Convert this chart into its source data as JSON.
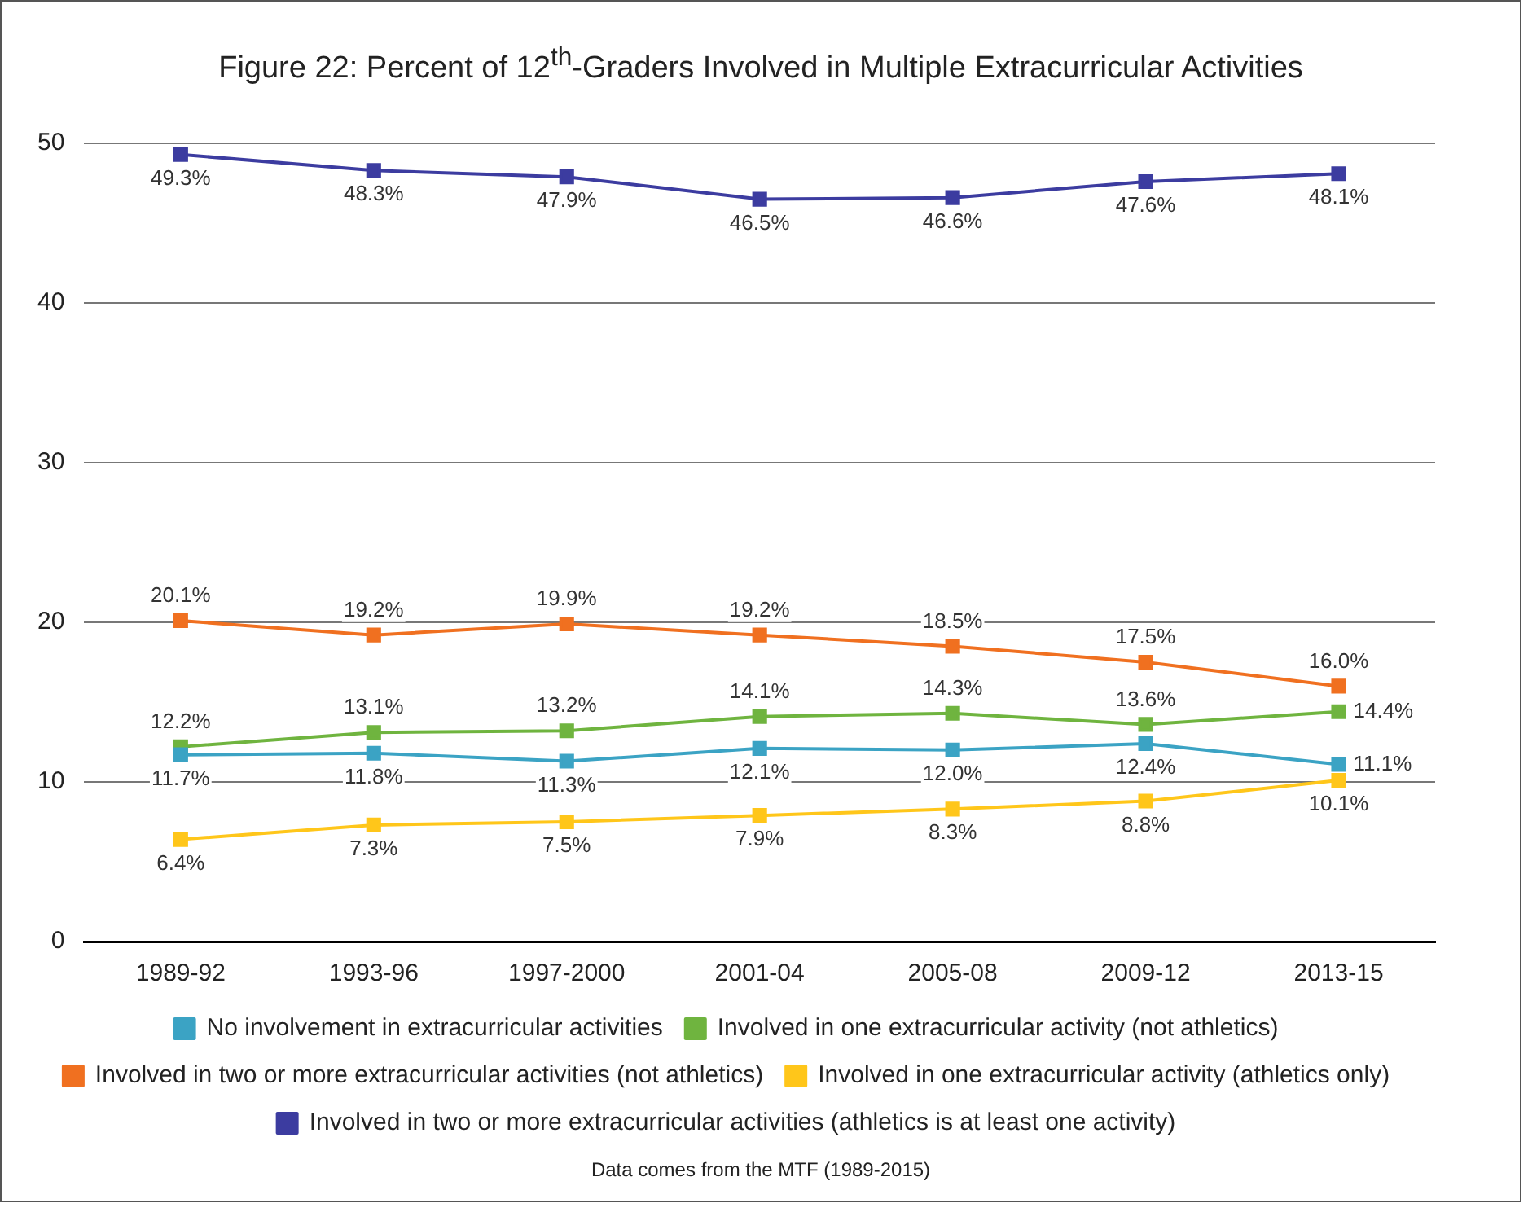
{
  "chart_data": {
    "type": "line",
    "title": "Figure 22: Percent of 12$^{th}$-Graders Involved in Multiple Extracurricular Activities",
    "categories": [
      "1989-92",
      "1993-96",
      "1997-2000",
      "2001-04",
      "2005-08",
      "2009-12",
      "2013-15"
    ],
    "ylim": [
      0,
      50
    ],
    "yticks": [
      0,
      10,
      20,
      30,
      40,
      50
    ],
    "grid": "y",
    "legend": "bottom",
    "marker": "square",
    "line_style": "solid",
    "series": [
      {
        "name": "No involvement in extracurricular activities",
        "color": "#3ba3c4",
        "values": [
          11.7,
          11.8,
          11.3,
          12.1,
          12.0,
          12.4,
          11.1
        ],
        "value_labels": [
          "11.7%",
          "11.8%",
          "11.3%",
          "12.1%",
          "12.0%",
          "12.4%",
          "11.1%"
        ]
      },
      {
        "name": "Involved in one extracurricular activity (not athletics)",
        "color": "#6fb43f",
        "values": [
          12.2,
          13.1,
          13.2,
          14.1,
          14.3,
          13.6,
          14.4
        ],
        "value_labels": [
          "12.2%",
          "13.1%",
          "13.2%",
          "14.1%",
          "14.3%",
          "13.6%",
          "14.4%"
        ]
      },
      {
        "name": "Involved in two or more extracurricular activities (not athletics)",
        "color": "#f07020",
        "values": [
          20.1,
          19.2,
          19.9,
          19.2,
          18.5,
          17.5,
          16.0
        ],
        "value_labels": [
          "20.1%",
          "19.2%",
          "19.9%",
          "19.2%",
          "18.5%",
          "17.5%",
          "16.0%"
        ]
      },
      {
        "name": "Involved in one extracurricular activity (athletics only)",
        "color": "#ffc61a",
        "values": [
          6.4,
          7.3,
          7.5,
          7.9,
          8.3,
          8.8,
          10.1
        ],
        "value_labels": [
          "6.4%",
          "7.3%",
          "7.5%",
          "7.9%",
          "8.3%",
          "8.8%",
          "10.1%"
        ]
      },
      {
        "name": "Involved in two or more extracurricular activities (athletics is at least one activity)",
        "color": "#3c3ca0",
        "values": [
          49.3,
          48.3,
          47.9,
          46.5,
          46.6,
          47.6,
          48.1
        ],
        "value_labels": [
          "49.3%",
          "48.3%",
          "47.9%",
          "46.5%",
          "46.6%",
          "47.6%",
          "48.1%"
        ]
      }
    ],
    "annotations": [
      "Data comes from the MTF (1989-2015)"
    ]
  }
}
